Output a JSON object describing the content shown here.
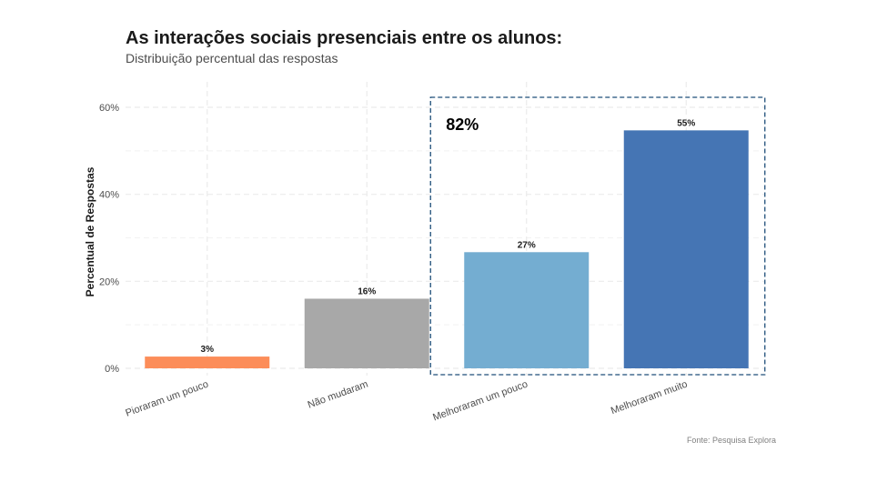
{
  "chart_data": {
    "type": "bar",
    "title": "As interações sociais presenciais entre os alunos:",
    "subtitle": "Distribuição percentual das respostas",
    "ylabel": "Percentual de Respostas",
    "xlabel": "",
    "ylim": [
      0,
      60
    ],
    "y_ticks": [
      0,
      20,
      40,
      60
    ],
    "y_tick_labels": [
      "0%",
      "20%",
      "40%",
      "60%"
    ],
    "categories": [
      "Pioraram um pouco",
      "Não mudaram",
      "Melhoraram um pouco",
      "Melhoraram muito"
    ],
    "values": [
      2.7,
      16,
      26.7,
      54.7
    ],
    "value_labels": [
      "3%",
      "16%",
      "27%",
      "55%"
    ],
    "colors": [
      "#fc8d59",
      "#a8a8a8",
      "#74add1",
      "#4575b4"
    ],
    "annotation": {
      "text": "82%",
      "highlighted_categories": [
        "Melhoraram um pouco",
        "Melhoraram muito"
      ],
      "box_color": "#1f4e79"
    },
    "caption": "Fonte: Pesquisa Explora",
    "grid": true
  }
}
